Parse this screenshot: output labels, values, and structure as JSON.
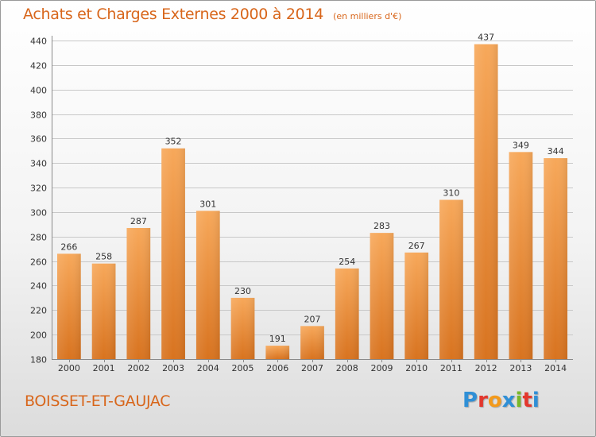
{
  "title": "Achats et Charges Externes 2000 à 2014",
  "subtitle": "(en milliers d'€)",
  "commune": "BOISSET-ET-GAUJAC",
  "logo": {
    "text": "Proxiti",
    "letter_colors": [
      "#2f8fd6",
      "#e3372d",
      "#f39a1c",
      "#2f8fd6",
      "#79b82a",
      "#e3372d",
      "#2f8fd6"
    ]
  },
  "colors": {
    "title": "#d8661b",
    "bar_top": "#f7a85a",
    "bar_bottom": "#d8731f",
    "grid": "#c8c8c8",
    "axis_text": "#333333"
  },
  "chart_data": {
    "type": "bar",
    "categories": [
      "2000",
      "2001",
      "2002",
      "2003",
      "2004",
      "2005",
      "2006",
      "2007",
      "2008",
      "2009",
      "2010",
      "2011",
      "2012",
      "2013",
      "2014"
    ],
    "values": [
      266,
      258,
      287,
      352,
      301,
      230,
      191,
      207,
      254,
      283,
      267,
      310,
      437,
      349,
      344
    ],
    "ylim": [
      180,
      440
    ],
    "yticks": [
      180,
      200,
      220,
      240,
      260,
      280,
      300,
      320,
      340,
      360,
      380,
      400,
      420,
      440
    ],
    "grid": true,
    "data_labels": true
  }
}
